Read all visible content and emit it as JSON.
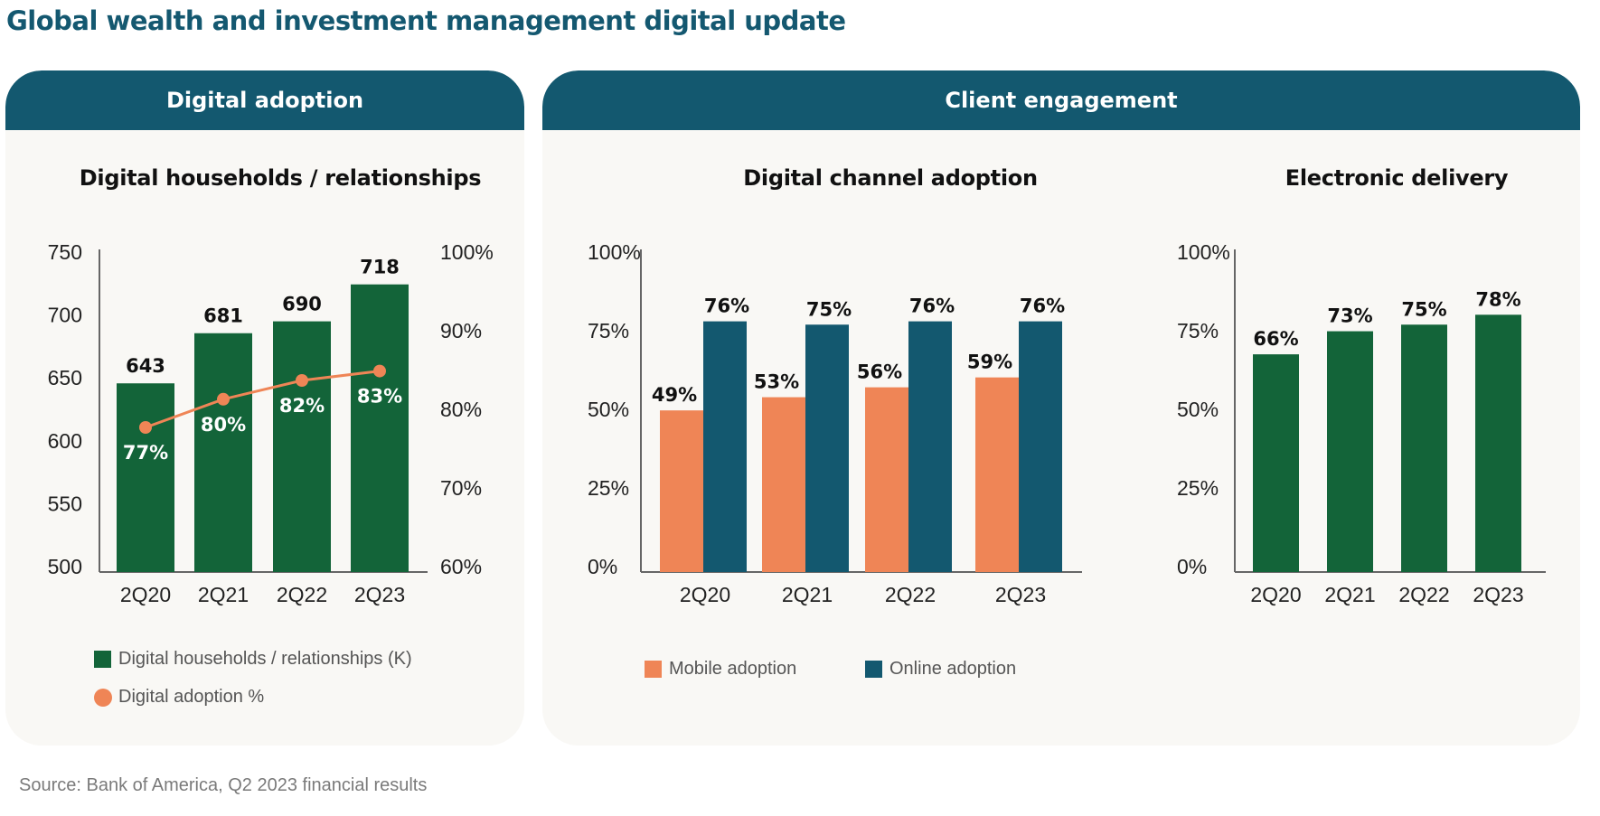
{
  "page": {
    "title": "Global wealth and investment management digital update",
    "source": "Source: Bank of America, Q2 2023 financial results"
  },
  "panels": {
    "left": {
      "header": "Digital adoption"
    },
    "right": {
      "header": "Client engagement"
    }
  },
  "colors": {
    "header": "#13586f",
    "green": "#136439",
    "orange": "#ef8556",
    "teal": "#13586f",
    "axis": "#666666"
  },
  "chart_data": [
    {
      "id": "households",
      "type": "bar",
      "title": "Digital households / relationships",
      "categories": [
        "2Q20",
        "2Q21",
        "2Q22",
        "2Q23"
      ],
      "series": [
        {
          "name": "Digital households / relationships (K)",
          "type": "bar",
          "axis": "left",
          "values": [
            643,
            681,
            690,
            718
          ],
          "labels": [
            "643",
            "681",
            "690",
            "718"
          ]
        },
        {
          "name": "Digital adoption %",
          "type": "line",
          "axis": "right",
          "values": [
            77,
            80,
            82,
            83
          ],
          "labels": [
            "77%",
            "80%",
            "82%",
            "83%"
          ]
        }
      ],
      "ylim": [
        500,
        750
      ],
      "yticks": [
        "500",
        "550",
        "600",
        "650",
        "700",
        "750"
      ],
      "y2lim": [
        60,
        100
      ],
      "y2ticks": [
        "60%",
        "70%",
        "80%",
        "90%",
        "100%"
      ],
      "xlabel": "",
      "ylabel": "",
      "grid": false,
      "legend": [
        {
          "label": "Digital households / relationships (K)",
          "marker": "square"
        },
        {
          "label": "Digital adoption %",
          "marker": "circle"
        }
      ],
      "legend_position": "bottom"
    },
    {
      "id": "channel",
      "type": "bar",
      "title": "Digital channel adoption",
      "categories": [
        "2Q20",
        "2Q21",
        "2Q22",
        "2Q23"
      ],
      "series": [
        {
          "name": "Mobile adoption",
          "values": [
            49,
            53,
            56,
            59
          ],
          "labels": [
            "49%",
            "53%",
            "56%",
            "59%"
          ]
        },
        {
          "name": "Online adoption",
          "values": [
            76,
            75,
            76,
            76
          ],
          "labels": [
            "76%",
            "75%",
            "76%",
            "76%"
          ]
        }
      ],
      "ylim": [
        0,
        100
      ],
      "yticks": [
        "0%",
        "25%",
        "50%",
        "75%",
        "100%"
      ],
      "xlabel": "",
      "ylabel": "",
      "grid": false,
      "legend": [
        {
          "label": "Mobile adoption",
          "marker": "square"
        },
        {
          "label": "Online adoption",
          "marker": "square"
        }
      ],
      "legend_position": "bottom"
    },
    {
      "id": "delivery",
      "type": "bar",
      "title": "Electronic delivery",
      "categories": [
        "2Q20",
        "2Q21",
        "2Q22",
        "2Q23"
      ],
      "series": [
        {
          "name": "Electronic delivery",
          "values": [
            66,
            73,
            75,
            78
          ],
          "labels": [
            "66%",
            "73%",
            "75%",
            "78%"
          ]
        }
      ],
      "ylim": [
        0,
        100
      ],
      "yticks": [
        "0%",
        "25%",
        "50%",
        "75%",
        "100%"
      ],
      "xlabel": "",
      "ylabel": "",
      "grid": false,
      "legend_position": "none"
    }
  ]
}
